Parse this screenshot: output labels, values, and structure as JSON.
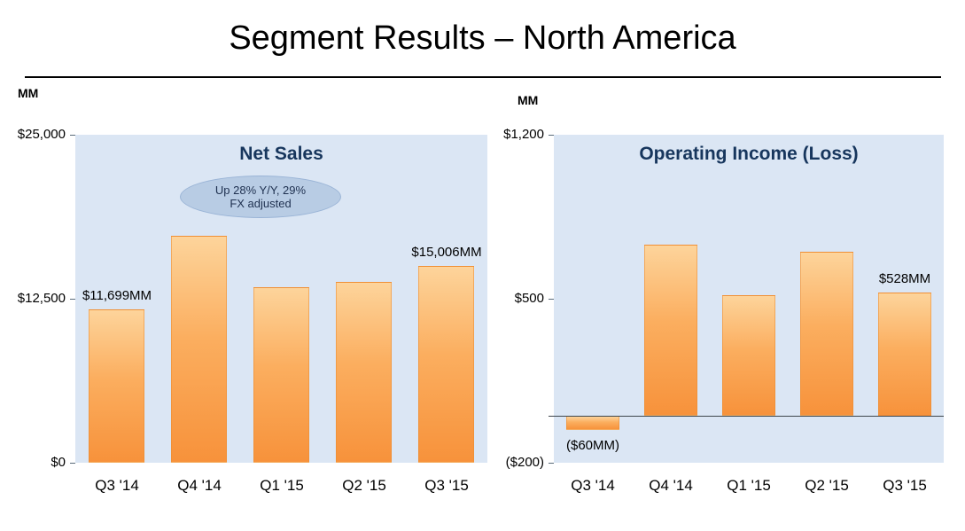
{
  "page": {
    "title": "Segment Results – North America"
  },
  "colors": {
    "plot_bg": "#DBE6F4",
    "bar_top": "#FDD49B",
    "bar_mid": "#FBAE5F",
    "bar_bottom": "#F7923B",
    "chart_title": "#17365D",
    "annotation_bg": "#B8CCE4"
  },
  "chart_data": [
    {
      "type": "bar",
      "title": "Net Sales",
      "unit_label": "MM",
      "categories": [
        "Q3 '14",
        "Q4 '14",
        "Q1 '15",
        "Q2 '15",
        "Q3 '15"
      ],
      "values": [
        11699,
        17300,
        13400,
        13800,
        15006
      ],
      "point_labels": [
        "$11,699MM",
        null,
        null,
        null,
        "$15,006MM"
      ],
      "ylim": [
        0,
        25000
      ],
      "yticks": [
        {
          "value": 25000,
          "label": "$25,000"
        },
        {
          "value": 12500,
          "label": "$12,500"
        },
        {
          "value": 0,
          "label": "$0"
        }
      ],
      "annotation": {
        "lines": [
          "Up 28% Y/Y, 29%",
          "FX adjusted"
        ]
      },
      "grid": false,
      "legend": false
    },
    {
      "type": "bar",
      "title": "Operating Income (Loss)",
      "unit_label": "MM",
      "categories": [
        "Q3 '14",
        "Q4 '14",
        "Q1 '15",
        "Q2 '15",
        "Q3 '15"
      ],
      "values": [
        -60,
        730,
        515,
        700,
        528
      ],
      "point_labels": [
        "($60MM)",
        null,
        null,
        null,
        "$528MM"
      ],
      "ylim": [
        -200,
        1200
      ],
      "yticks": [
        {
          "value": 1200,
          "label": "$1,200"
        },
        {
          "value": 500,
          "label": "$500"
        },
        {
          "value": -200,
          "label": "($200)"
        }
      ],
      "grid": false,
      "legend": false
    }
  ]
}
